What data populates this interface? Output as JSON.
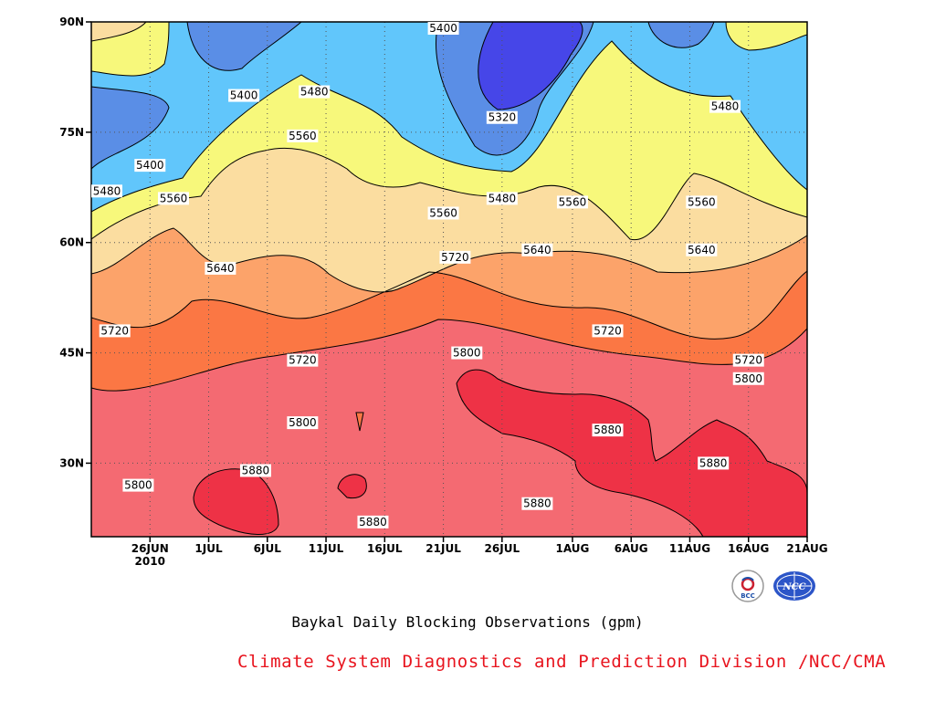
{
  "chart_data": {
    "type": "contour",
    "title": "Baykal Daily Blocking Observations (gpm)",
    "x_tick_labels": [
      "26JUN",
      "1JUL",
      "6JUL",
      "11JUL",
      "16JUL",
      "21JUL",
      "26JUL",
      "1AUG",
      "6AUG",
      "11AUG",
      "16AUG",
      "21AUG"
    ],
    "x_year_label": "2010",
    "y_tick_labels": [
      "90N",
      "75N",
      "60N",
      "45N",
      "30N"
    ],
    "ylim": [
      20,
      90
    ],
    "contour_levels": [
      5320,
      5400,
      5480,
      5560,
      5640,
      5720,
      5800,
      5880
    ],
    "fill_colors": [
      "#4646e8",
      "#5a8ee6",
      "#61c6fb",
      "#f7f87b",
      "#fbdda0",
      "#fca36a",
      "#fb7744",
      "#f46a72",
      "#ee3246"
    ],
    "contour_labels": [
      {
        "text": "5400",
        "date": "26JUN"
      },
      {
        "text": "5400",
        "date": "4JUL"
      },
      {
        "text": "5400",
        "date": "21JUL"
      },
      {
        "text": "5480",
        "date": "22JUN"
      },
      {
        "text": "5480",
        "date": "10JUL"
      },
      {
        "text": "5480",
        "date": "26JUL"
      },
      {
        "text": "5480",
        "date": "14AUG"
      },
      {
        "text": "5320",
        "date": "26JUL"
      },
      {
        "text": "5560",
        "date": "28JUN"
      },
      {
        "text": "5560",
        "date": "9JUL"
      },
      {
        "text": "5560",
        "date": "21JUL"
      },
      {
        "text": "5560",
        "date": "1AUG"
      },
      {
        "text": "5560",
        "date": "12AUG"
      },
      {
        "text": "5640",
        "date": "2JUL"
      },
      {
        "text": "5640",
        "date": "29JUL"
      },
      {
        "text": "5640",
        "date": "12AUG"
      },
      {
        "text": "5720",
        "date": "23JUN"
      },
      {
        "text": "5720",
        "date": "9JUL"
      },
      {
        "text": "5720",
        "date": "22JUL"
      },
      {
        "text": "5720",
        "date": "4AUG"
      },
      {
        "text": "5720",
        "date": "16AUG"
      },
      {
        "text": "5800",
        "date": "25JUN"
      },
      {
        "text": "5800",
        "date": "9JUL"
      },
      {
        "text": "5800",
        "date": "23JUL"
      },
      {
        "text": "5800",
        "date": "16AUG"
      },
      {
        "text": "5880",
        "date": "5JUL"
      },
      {
        "text": "5880",
        "date": "15JUL"
      },
      {
        "text": "5880",
        "date": "29JUL"
      },
      {
        "text": "5880",
        "date": "4AUG"
      },
      {
        "text": "5880",
        "date": "13AUG"
      }
    ]
  },
  "credit": "Climate System Diagnostics and Prediction Division /NCC/CMA",
  "logos": {
    "left_logo_text": "BCC",
    "right_logo_text": "NCC"
  }
}
